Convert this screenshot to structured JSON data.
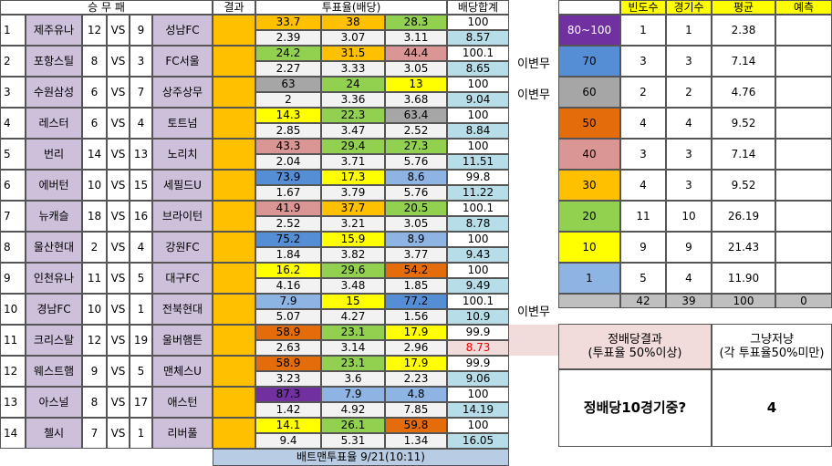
{
  "header": {
    "match": "승 무 패",
    "result": "결과",
    "votes": "투표율(배당)",
    "sum": "배당합계"
  },
  "matches": [
    {
      "no": 1,
      "home": "제주유나",
      "home_rank": 12,
      "vs": "VS",
      "away_rank": 9,
      "away": "성남FC",
      "votes": [
        33.7,
        38,
        28.3
      ],
      "vote_colors": [
        "#ffc000",
        "#ffc000",
        "#92d050"
      ],
      "vote_sum": 100,
      "odds": [
        2.39,
        3.07,
        3.11
      ],
      "odds_sum": 8.57
    },
    {
      "no": 2,
      "home": "포항스틸",
      "home_rank": 8,
      "vs": "VS",
      "away_rank": 3,
      "away": "FC서울",
      "votes": [
        24.2,
        31.5,
        44.4
      ],
      "vote_colors": [
        "#92d050",
        "#ffc000",
        "#da9694"
      ],
      "vote_sum": 100.1,
      "odds": [
        2.27,
        3.33,
        3.05
      ],
      "odds_sum": 8.65,
      "note": "이변무"
    },
    {
      "no": 3,
      "home": "수원삼성",
      "home_rank": 6,
      "vs": "VS",
      "away_rank": 7,
      "away": "상주상무",
      "votes": [
        63,
        24,
        13
      ],
      "vote_colors": [
        "#a6a6a6",
        "#92d050",
        "#ffff00"
      ],
      "vote_sum": 100,
      "odds": [
        2,
        3.36,
        3.68
      ],
      "odds_sum": 9.04,
      "note": "이변무"
    },
    {
      "no": 4,
      "home": "레스터",
      "home_rank": 6,
      "vs": "VS",
      "away_rank": 4,
      "away": "토트넘",
      "votes": [
        14.3,
        22.3,
        63.4
      ],
      "vote_colors": [
        "#ffff00",
        "#92d050",
        "#a6a6a6"
      ],
      "vote_sum": 100,
      "odds": [
        2.85,
        3.47,
        2.52
      ],
      "odds_sum": 8.84
    },
    {
      "no": 5,
      "home": "번리",
      "home_rank": 14,
      "vs": "VS",
      "away_rank": 13,
      "away": "노리치",
      "votes": [
        43.3,
        29.4,
        27.3
      ],
      "vote_colors": [
        "#da9694",
        "#92d050",
        "#92d050"
      ],
      "vote_sum": 100,
      "odds": [
        2.04,
        3.71,
        5.76
      ],
      "odds_sum": 11.51
    },
    {
      "no": 6,
      "home": "에버턴",
      "home_rank": 10,
      "vs": "VS",
      "away_rank": 15,
      "away": "세필드U",
      "votes": [
        73.9,
        17.3,
        8.6
      ],
      "vote_colors": [
        "#558ed5",
        "#ffff00",
        "#8db4e2"
      ],
      "vote_sum": 99.8,
      "odds": [
        1.67,
        3.79,
        5.76
      ],
      "odds_sum": 11.22
    },
    {
      "no": 7,
      "home": "뉴캐슬",
      "home_rank": 18,
      "vs": "VS",
      "away_rank": 16,
      "away": "브라이턴",
      "votes": [
        41.9,
        37.7,
        20.5
      ],
      "vote_colors": [
        "#da9694",
        "#ffc000",
        "#92d050"
      ],
      "vote_sum": 100.1,
      "odds": [
        2.52,
        3.21,
        3.05
      ],
      "odds_sum": 8.78
    },
    {
      "no": 8,
      "home": "울산현대",
      "home_rank": 2,
      "vs": "VS",
      "away_rank": 4,
      "away": "강원FC",
      "votes": [
        75.2,
        15.9,
        8.9
      ],
      "vote_colors": [
        "#558ed5",
        "#ffff00",
        "#8db4e2"
      ],
      "vote_sum": 100,
      "odds": [
        1.84,
        3.82,
        3.77
      ],
      "odds_sum": 9.43
    },
    {
      "no": 9,
      "home": "인천유나",
      "home_rank": 11,
      "vs": "VS",
      "away_rank": 5,
      "away": "대구FC",
      "votes": [
        16.2,
        29.6,
        54.2
      ],
      "vote_colors": [
        "#ffff00",
        "#92d050",
        "#e46c0a"
      ],
      "vote_sum": 100,
      "odds": [
        4.16,
        3.48,
        1.85
      ],
      "odds_sum": 9.49
    },
    {
      "no": 10,
      "home": "경남FC",
      "home_rank": 10,
      "vs": "VS",
      "away_rank": 1,
      "away": "전북현대",
      "votes": [
        7.9,
        15,
        77.2
      ],
      "vote_colors": [
        "#8db4e2",
        "#ffff00",
        "#558ed5"
      ],
      "vote_sum": 100.1,
      "odds": [
        5.07,
        4.27,
        1.56
      ],
      "odds_sum": 10.9,
      "note": "이변무"
    },
    {
      "no": 11,
      "home": "크리스탈",
      "home_rank": 12,
      "vs": "VS",
      "away_rank": 19,
      "away": "울버햄튼",
      "votes": [
        58.9,
        23.1,
        17.9
      ],
      "vote_colors": [
        "#e46c0a",
        "#92d050",
        "#ffff00"
      ],
      "vote_sum": 99.9,
      "odds": [
        2.63,
        3.14,
        2.96
      ],
      "odds_sum": 8.73
    },
    {
      "no": 12,
      "home": "웨스트햄",
      "home_rank": 9,
      "vs": "VS",
      "away_rank": 5,
      "away": "맨체스U",
      "votes": [
        58.9,
        23.1,
        17.9
      ],
      "vote_colors": [
        "#e46c0a",
        "#92d050",
        "#ffff00"
      ],
      "vote_sum": 99.9,
      "odds": [
        3.23,
        3.6,
        2.23
      ],
      "odds_sum": 9.06
    },
    {
      "no": 13,
      "home": "아스널",
      "home_rank": 8,
      "vs": "VS",
      "away_rank": 17,
      "away": "애스턴",
      "votes": [
        87.3,
        7.9,
        4.8
      ],
      "vote_colors": [
        "#7030a0",
        "#8db4e2",
        "#8db4e2"
      ],
      "vote_sum": 100,
      "odds": [
        1.42,
        4.92,
        7.85
      ],
      "odds_sum": 14.19
    },
    {
      "no": 14,
      "home": "첼시",
      "home_rank": 7,
      "vs": "VS",
      "away_rank": 1,
      "away": "리버풀",
      "votes": [
        14.1,
        26.1,
        59.8
      ],
      "vote_colors": [
        "#ffff00",
        "#92d050",
        "#e46c0a"
      ],
      "vote_sum": 100,
      "odds": [
        9.4,
        5.31,
        1.34
      ],
      "odds_sum": 16.05
    }
  ],
  "footer": "배트맨투표율 9/21(10:11)",
  "stats": {
    "headers": [
      "빈도수",
      "경기수",
      "평균",
      "예측"
    ],
    "rows": [
      {
        "range": "80~100",
        "color": "#7030a0",
        "freq": 1,
        "games": 1,
        "avg": 2.38
      },
      {
        "range": "70",
        "color": "#558ed5",
        "freq": 3,
        "games": 3,
        "avg": 7.14
      },
      {
        "range": "60",
        "color": "#a6a6a6",
        "freq": 2,
        "games": 2,
        "avg": 4.76
      },
      {
        "range": "50",
        "color": "#e46c0a",
        "freq": 4,
        "games": 4,
        "avg": 9.52
      },
      {
        "range": "40",
        "color": "#da9694",
        "freq": 3,
        "games": 3,
        "avg": 7.14
      },
      {
        "range": "30",
        "color": "#ffc000",
        "freq": 4,
        "games": 3,
        "avg": 9.52
      },
      {
        "range": "20",
        "color": "#92d050",
        "freq": 11,
        "games": 10,
        "avg": 26.19
      },
      {
        "range": "10",
        "color": "#ffff00",
        "freq": 9,
        "games": 9,
        "avg": 21.43
      },
      {
        "range": "1",
        "color": "#8db4e2",
        "freq": 5,
        "games": 4,
        "avg": "11.90"
      }
    ],
    "total": {
      "freq": 42,
      "games": 39,
      "avg": 100,
      "pred": 0
    }
  },
  "summary": {
    "col1": [
      "정배당결과",
      "(투표율 50%이상)"
    ],
    "col2": [
      "그냥저냥",
      "(각 투표율50%미만)"
    ],
    "question": "정배당10경기중?",
    "answer": 4
  }
}
